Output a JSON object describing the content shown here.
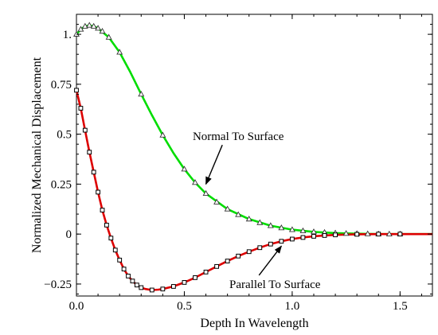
{
  "chart_data": {
    "type": "line",
    "xlabel": "Depth In Wavelength",
    "ylabel": "Normalized Mechanical Displacement",
    "xlim": [
      0,
      1.65
    ],
    "ylim": [
      -0.31,
      1.1
    ],
    "x_ticks": [
      0,
      0.5,
      1,
      1.5
    ],
    "x_tick_labels": [
      "0.0",
      "0.5",
      "1.0",
      "1.5"
    ],
    "y_ticks": [
      -0.25,
      0,
      0.25,
      0.5,
      0.75,
      1
    ],
    "y_tick_labels": [
      "−0.25",
      "0",
      "0.25",
      "0.5",
      "0.75",
      "1."
    ],
    "grid": false,
    "series": [
      {
        "name": "Normal To Surface",
        "kind": "curve",
        "color": "#00dd00",
        "x": [
          0,
          0.02,
          0.04,
          0.06,
          0.08,
          0.1,
          0.15,
          0.2,
          0.25,
          0.3,
          0.35,
          0.4,
          0.45,
          0.5,
          0.55,
          0.6,
          0.7,
          0.8,
          0.9,
          1.0,
          1.1,
          1.2,
          1.3,
          1.4,
          1.5,
          1.65
        ],
        "y": [
          1.0,
          1.025,
          1.04,
          1.045,
          1.04,
          1.03,
          0.985,
          0.91,
          0.81,
          0.7,
          0.595,
          0.495,
          0.405,
          0.325,
          0.258,
          0.203,
          0.125,
          0.075,
          0.042,
          0.022,
          0.011,
          0.005,
          0.002,
          0.0,
          0.0,
          0.0
        ]
      },
      {
        "name": "Normal To Surface",
        "kind": "markers",
        "marker": "triangle",
        "x": [
          0,
          0.02,
          0.04,
          0.06,
          0.08,
          0.1,
          0.12,
          0.15,
          0.2,
          0.3,
          0.4,
          0.5,
          0.55,
          0.6,
          0.65,
          0.7,
          0.75,
          0.8,
          0.85,
          0.9,
          0.95,
          1.0,
          1.05,
          1.1,
          1.15,
          1.2,
          1.25,
          1.3,
          1.35,
          1.4,
          1.45,
          1.5
        ],
        "y": [
          1.0,
          1.025,
          1.04,
          1.045,
          1.04,
          1.03,
          1.015,
          0.985,
          0.91,
          0.7,
          0.495,
          0.325,
          0.258,
          0.203,
          0.16,
          0.125,
          0.097,
          0.075,
          0.057,
          0.042,
          0.031,
          0.022,
          0.016,
          0.011,
          0.008,
          0.005,
          0.003,
          0.002,
          0.001,
          0.0,
          0.0,
          0.0
        ]
      },
      {
        "name": "Parallel To Surface",
        "kind": "curve",
        "color": "#dd0000",
        "x": [
          0,
          0.02,
          0.04,
          0.06,
          0.08,
          0.1,
          0.12,
          0.14,
          0.16,
          0.18,
          0.2,
          0.22,
          0.24,
          0.26,
          0.28,
          0.3,
          0.32,
          0.35,
          0.38,
          0.4,
          0.45,
          0.5,
          0.55,
          0.6,
          0.65,
          0.7,
          0.75,
          0.8,
          0.85,
          0.9,
          0.95,
          1.0,
          1.05,
          1.1,
          1.15,
          1.2,
          1.3,
          1.4,
          1.5,
          1.65
        ],
        "y": [
          0.72,
          0.63,
          0.52,
          0.41,
          0.31,
          0.21,
          0.12,
          0.045,
          -0.02,
          -0.08,
          -0.13,
          -0.175,
          -0.21,
          -0.235,
          -0.255,
          -0.268,
          -0.275,
          -0.28,
          -0.278,
          -0.275,
          -0.262,
          -0.242,
          -0.218,
          -0.19,
          -0.162,
          -0.135,
          -0.11,
          -0.088,
          -0.068,
          -0.05,
          -0.036,
          -0.025,
          -0.017,
          -0.011,
          -0.007,
          -0.004,
          -0.001,
          0.0,
          0.0,
          0.0
        ]
      },
      {
        "name": "Parallel To Surface",
        "kind": "markers",
        "marker": "square",
        "x": [
          0,
          0.02,
          0.04,
          0.06,
          0.08,
          0.1,
          0.12,
          0.14,
          0.16,
          0.18,
          0.2,
          0.22,
          0.24,
          0.26,
          0.28,
          0.3,
          0.35,
          0.4,
          0.45,
          0.5,
          0.55,
          0.6,
          0.65,
          0.7,
          0.75,
          0.8,
          0.85,
          0.9,
          0.95,
          1.0,
          1.05,
          1.1,
          1.15,
          1.2,
          1.3,
          1.4,
          1.5
        ],
        "y": [
          0.72,
          0.63,
          0.52,
          0.41,
          0.31,
          0.21,
          0.12,
          0.045,
          -0.02,
          -0.08,
          -0.13,
          -0.175,
          -0.21,
          -0.235,
          -0.255,
          -0.268,
          -0.28,
          -0.275,
          -0.262,
          -0.242,
          -0.218,
          -0.19,
          -0.162,
          -0.135,
          -0.11,
          -0.088,
          -0.068,
          -0.05,
          -0.036,
          -0.025,
          -0.017,
          -0.011,
          -0.007,
          -0.004,
          -0.001,
          0.0,
          0.0
        ]
      }
    ],
    "annotations": [
      {
        "text": "Normal To Surface",
        "text_at": [
          0.75,
          0.47
        ],
        "arrow_to": [
          0.6,
          0.25
        ]
      },
      {
        "text": "Parallel To Surface",
        "text_at": [
          0.92,
          -0.27
        ],
        "arrow_to": [
          0.95,
          -0.06
        ]
      }
    ]
  }
}
